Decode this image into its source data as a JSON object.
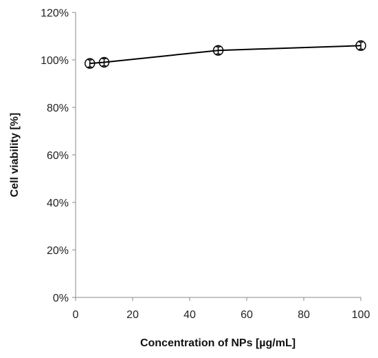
{
  "chart_data": {
    "type": "scatter",
    "xlabel": "Concentration of NPs [µg/mL]",
    "ylabel": "Cell viability [%]",
    "xlim": [
      0,
      100
    ],
    "ylim": [
      0,
      120
    ],
    "x_ticks": [
      "0",
      "20",
      "40",
      "60",
      "80",
      "100"
    ],
    "y_ticks": [
      "0%",
      "20%",
      "40%",
      "60%",
      "80%",
      "100%",
      "120%"
    ],
    "grid": false,
    "series": [
      {
        "x": [
          5,
          10,
          50,
          100
        ],
        "y": [
          98.5,
          99,
          104,
          106
        ],
        "error": [
          1.5,
          1.5,
          1.5,
          1.5
        ],
        "marker": "open-circle",
        "line": true,
        "color": "#000000"
      }
    ]
  }
}
